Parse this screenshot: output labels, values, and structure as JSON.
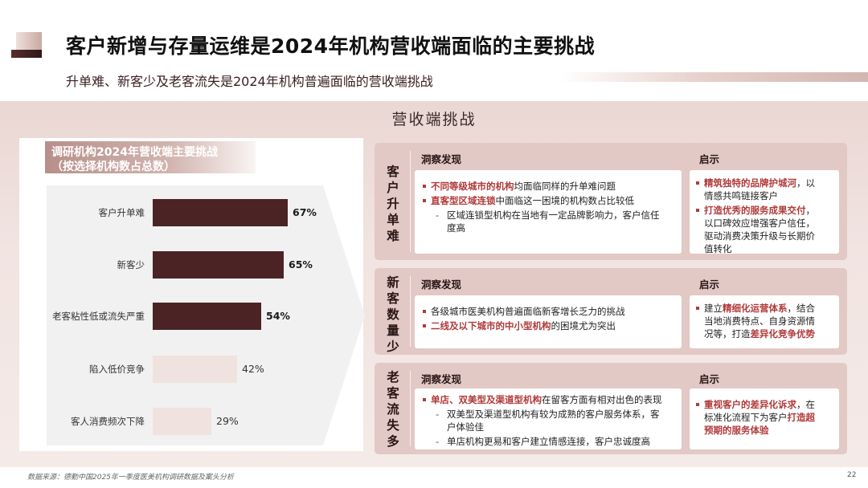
{
  "header": {
    "title": "客户新增与存量运维是2024年机构营收端面临的主要挑战",
    "subtitle": "升单难、新客少及老客流失是2024年机构普遍面临的营收端挑战"
  },
  "panel": {
    "title": "营收端挑战"
  },
  "chart_data": {
    "type": "bar",
    "title_line1": "调研机构2024年营收端主要挑战",
    "title_line2": "（按选择机构数占总数）",
    "categories": [
      "客户升单难",
      "新客少",
      "老客粘性低或流失严重",
      "陷入低价竞争",
      "客人消费频次下降"
    ],
    "values": [
      67,
      65,
      54,
      42,
      29
    ],
    "value_labels": [
      "67%",
      "65%",
      "54%",
      "42%",
      "29%"
    ],
    "highlighted": [
      true,
      true,
      true,
      false,
      false
    ],
    "colors": {
      "dark": "#4b2325",
      "light": "#f0e2df"
    }
  },
  "cards": [
    {
      "label_chars": [
        "客",
        "户",
        "升",
        "单",
        "难"
      ],
      "insight_heading": "洞察发现",
      "tip_heading": "启示",
      "insights": [
        {
          "hl": "不同等级城市的机构",
          "text": "均面临同样的升单难问题"
        },
        {
          "hl": "直客型区域连锁",
          "text": "中面临这一困境的机构数占比较低"
        }
      ],
      "subpoints": [
        "区域连锁型机构在当地有一定品牌影响力，客户信任",
        "度高"
      ],
      "tips": [
        {
          "hl": "精筑独特的品牌护城河",
          "lines": [
            "，以",
            "情感共鸣链接客户"
          ]
        },
        {
          "hl": "打造优秀的服务成果交付",
          "lines": [
            "，",
            "以口碑效应增强客户信任，",
            "驱动消费决策升级与长期价",
            "值转化"
          ]
        }
      ]
    },
    {
      "label_chars": [
        "新",
        "客",
        "数",
        "量",
        "少"
      ],
      "insight_heading": "洞察发现",
      "tip_heading": "启示",
      "insights": [
        {
          "pre": "各级城市医美机构普遍面临新客增长乏力的挑战"
        },
        {
          "hl": "二线及以下城市的中小型机构",
          "text": "的困境尤为突出"
        }
      ],
      "tips": [
        {
          "pre": "建立",
          "hl": "精细化运营体系",
          "post": "，结合"
        },
        {
          "pre": "当地消费特点、自身资源情"
        },
        {
          "pre": "况等，打造",
          "hl": "差异化竞争优势"
        }
      ]
    },
    {
      "label_chars": [
        "老",
        "客",
        "流",
        "失",
        "多"
      ],
      "insight_heading": "洞察发现",
      "tip_heading": "启示",
      "insights": [
        {
          "hl": "单店、双美型及渠道型机构",
          "text": "在留客方面有相对出色的表现"
        }
      ],
      "subpoints": [
        "双美型及渠道型机构有较为成熟的客户服务体系，客",
        "户体验佳",
        "单店机构更易和客户建立情感连接，客户忠诚度高"
      ],
      "tips": [
        {
          "hl": "重视客户的差异化诉求",
          "post": "，在"
        },
        {
          "pre": "标准化流程下为客户",
          "hl": "打造超"
        },
        {
          "hl": "预期的服务体验"
        }
      ]
    }
  ],
  "footer": {
    "source": "数据来源：德勤中国2025年一季度医美机构调研数据及案头分析",
    "page": "22"
  }
}
